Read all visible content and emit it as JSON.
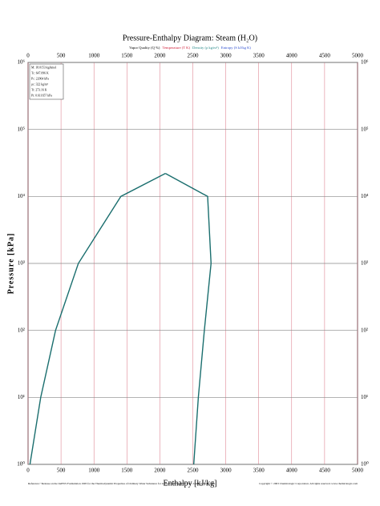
{
  "chart_data": {
    "type": "line",
    "title": "Pressure-Enthalpy Diagram: Steam (H₂O)",
    "subtitle_items": [
      {
        "label": "Vapor Quality (Q %)",
        "color": "#000000"
      },
      {
        "label": "Temperature (T K)",
        "color": "#d0203a"
      },
      {
        "label": "Density (ρ kg/m³)",
        "color": "#2a8a8a"
      },
      {
        "label": "Entropy (S kJ/kg K)",
        "color": "#3050d0"
      }
    ],
    "xlabel": "Enthalpy [kJ/kg]",
    "ylabel": "Pressure [kPa]",
    "xlim": [
      0,
      5000
    ],
    "xticks": [
      0,
      500,
      1000,
      1500,
      2000,
      2500,
      3000,
      3500,
      4000,
      4500,
      5000
    ],
    "ylim": [
      1,
      1000000
    ],
    "log_y": true,
    "yticks": [
      {
        "value": 1,
        "label": "10⁰"
      },
      {
        "value": 10,
        "label": "10¹"
      },
      {
        "value": 100,
        "label": "10²"
      },
      {
        "value": 1000,
        "label": "10³"
      },
      {
        "value": 10000,
        "label": "10⁴"
      },
      {
        "value": 100000,
        "label": "10⁵"
      },
      {
        "value": 1000000,
        "label": "10⁶"
      }
    ],
    "grid": true,
    "series": [
      {
        "color": "#1a6e6e",
        "x": [
          29,
          192,
          417,
          763,
          1408,
          2084
        ],
        "values": [
          1,
          10,
          100,
          1000,
          10000,
          22064
        ]
      },
      {
        "color": "#1a6e6e",
        "x": [
          2084,
          2725,
          2777,
          2675,
          2584,
          2514
        ],
        "values": [
          22064,
          10000,
          1000,
          100,
          10,
          1
        ]
      }
    ],
    "properties": [
      "M: 18.0153 kg/kmol",
      "Tc: 647.096 K",
      "Pc: 22064 kPa",
      "ρc: 322 kg/m³",
      "Tt: 273.16 K",
      "Pt: 0.611657 kPa"
    ],
    "reference": "Reference: \"Release on the IAPWS Formulation 1995 for the Thermodynamic Properties of Ordinary Water Substance for General and Scientific Use\", IAPWS, Sept. 1996.",
    "copyright": "Copyright © 2003 Chemicalogic Corporation. All rights reserved. www.chemicalogic.com"
  }
}
